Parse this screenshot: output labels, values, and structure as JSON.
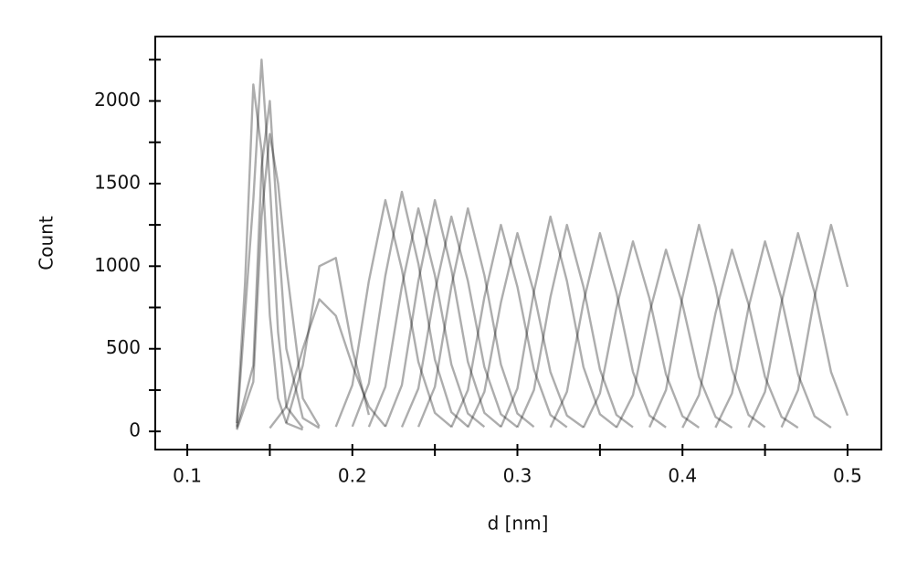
{
  "chart_data": {
    "type": "line",
    "xlabel": "d [nm]",
    "ylabel": "Count",
    "color": "#000000",
    "opacity": 0.32,
    "xlim": [
      0.0806,
      0.5205
    ],
    "xticks": [
      0.1,
      0.2,
      0.3,
      0.4,
      0.5
    ],
    "xminorticks": [
      0.15,
      0.25,
      0.35,
      0.45
    ],
    "ylim": [
      -110,
      2390
    ],
    "yticks": [
      0,
      500,
      1000,
      1500,
      2000
    ],
    "yminorticks": [
      250,
      750,
      1250,
      1750,
      2250
    ],
    "series": [
      {
        "x": [
          0.13,
          0.135,
          0.14,
          0.145,
          0.15,
          0.155,
          0.16,
          0.17
        ],
        "values": [
          50,
          900,
          2100,
          1700,
          700,
          200,
          50,
          10
        ]
      },
      {
        "x": [
          0.13,
          0.14,
          0.145,
          0.15,
          0.155,
          0.16,
          0.17,
          0.18
        ],
        "values": [
          20,
          400,
          1600,
          2000,
          1200,
          500,
          80,
          20
        ]
      },
      {
        "x": [
          0.13,
          0.14,
          0.145,
          0.15,
          0.155,
          0.16,
          0.165,
          0.17,
          0.18
        ],
        "values": [
          10,
          300,
          1300,
          1800,
          1500,
          1000,
          600,
          200,
          30
        ]
      },
      {
        "x": [
          0.13,
          0.14,
          0.145,
          0.15,
          0.155,
          0.16,
          0.17
        ],
        "values": [
          30,
          1400,
          2250,
          1500,
          600,
          150,
          20
        ]
      },
      {
        "x": [
          0.15,
          0.16,
          0.17,
          0.18,
          0.19,
          0.2,
          0.21,
          0.22
        ],
        "values": [
          20,
          150,
          500,
          800,
          700,
          400,
          150,
          30
        ]
      },
      {
        "x": [
          0.16,
          0.17,
          0.18,
          0.19,
          0.2,
          0.21
        ],
        "values": [
          50,
          400,
          1000,
          1050,
          500,
          100
        ]
      },
      {
        "x": [
          0.19,
          0.2,
          0.21,
          0.22,
          0.23,
          0.24,
          0.25,
          0.26
        ],
        "values": [
          28,
          280,
          910,
          1400,
          980,
          420,
          112,
          28
        ]
      },
      {
        "x": [
          0.2,
          0.21,
          0.22,
          0.23,
          0.24,
          0.25,
          0.26,
          0.27
        ],
        "values": [
          29,
          290,
          943,
          1450,
          1015,
          435,
          116,
          29
        ]
      },
      {
        "x": [
          0.21,
          0.22,
          0.23,
          0.24,
          0.25,
          0.26,
          0.27,
          0.28
        ],
        "values": [
          27,
          270,
          878,
          1350,
          945,
          405,
          108,
          27
        ]
      },
      {
        "x": [
          0.22,
          0.23,
          0.24,
          0.25,
          0.26,
          0.27,
          0.28,
          0.29
        ],
        "values": [
          28,
          280,
          910,
          1400,
          980,
          420,
          112,
          28
        ]
      },
      {
        "x": [
          0.23,
          0.24,
          0.25,
          0.26,
          0.27,
          0.28,
          0.29,
          0.3
        ],
        "values": [
          26,
          260,
          845,
          1300,
          910,
          390,
          104,
          26
        ]
      },
      {
        "x": [
          0.24,
          0.25,
          0.26,
          0.27,
          0.28,
          0.29,
          0.3,
          0.31
        ],
        "values": [
          27,
          270,
          878,
          1350,
          945,
          405,
          108,
          27
        ]
      },
      {
        "x": [
          0.26,
          0.27,
          0.28,
          0.29,
          0.3,
          0.31,
          0.32,
          0.33
        ],
        "values": [
          25,
          250,
          813,
          1250,
          875,
          375,
          100,
          25
        ]
      },
      {
        "x": [
          0.27,
          0.28,
          0.29,
          0.3,
          0.31,
          0.32,
          0.33,
          0.34
        ],
        "values": [
          24,
          240,
          780,
          1200,
          840,
          360,
          96,
          24
        ]
      },
      {
        "x": [
          0.29,
          0.3,
          0.31,
          0.32,
          0.33,
          0.34,
          0.35,
          0.36
        ],
        "values": [
          26,
          260,
          845,
          1300,
          910,
          390,
          104,
          26
        ]
      },
      {
        "x": [
          0.3,
          0.31,
          0.32,
          0.33,
          0.34,
          0.35,
          0.36,
          0.37
        ],
        "values": [
          25,
          250,
          813,
          1250,
          875,
          375,
          100,
          25
        ]
      },
      {
        "x": [
          0.32,
          0.33,
          0.34,
          0.35,
          0.36,
          0.37,
          0.38,
          0.39
        ],
        "values": [
          24,
          240,
          780,
          1200,
          840,
          360,
          96,
          24
        ]
      },
      {
        "x": [
          0.34,
          0.35,
          0.36,
          0.37,
          0.38,
          0.39,
          0.4,
          0.41
        ],
        "values": [
          23,
          230,
          748,
          1150,
          805,
          345,
          92,
          23
        ]
      },
      {
        "x": [
          0.36,
          0.37,
          0.38,
          0.39,
          0.4,
          0.41,
          0.42,
          0.43
        ],
        "values": [
          22,
          220,
          715,
          1100,
          770,
          330,
          88,
          22
        ]
      },
      {
        "x": [
          0.38,
          0.39,
          0.4,
          0.41,
          0.42,
          0.43,
          0.44,
          0.45
        ],
        "values": [
          25,
          250,
          813,
          1250,
          875,
          375,
          100,
          25
        ]
      },
      {
        "x": [
          0.4,
          0.41,
          0.42,
          0.43,
          0.44,
          0.45,
          0.46,
          0.47
        ],
        "values": [
          22,
          220,
          715,
          1100,
          770,
          330,
          88,
          22
        ]
      },
      {
        "x": [
          0.42,
          0.43,
          0.44,
          0.45,
          0.46,
          0.47,
          0.48,
          0.49
        ],
        "values": [
          23,
          230,
          748,
          1150,
          805,
          345,
          92,
          23
        ]
      },
      {
        "x": [
          0.44,
          0.45,
          0.46,
          0.47,
          0.48,
          0.49,
          0.5
        ],
        "values": [
          24,
          240,
          780,
          1200,
          840,
          360,
          96
        ]
      },
      {
        "x": [
          0.46,
          0.47,
          0.48,
          0.49,
          0.5
        ],
        "values": [
          25,
          250,
          813,
          1250,
          875
        ]
      }
    ]
  }
}
